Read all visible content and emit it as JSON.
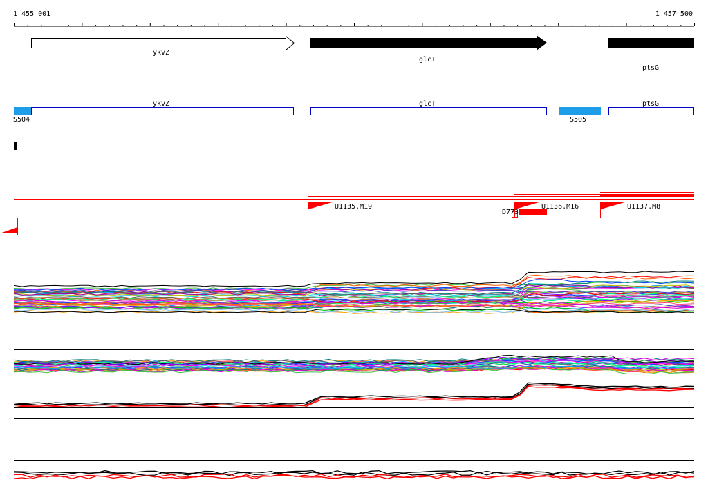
{
  "ruler": {
    "start_label": "1 455 001",
    "end_label": "1 457 500"
  },
  "genes": [
    {
      "name": "ykvZ",
      "strand": "+",
      "style": "open"
    },
    {
      "name": "glcT",
      "strand": "+",
      "style": "filled"
    },
    {
      "name": "ptsG",
      "strand": "+",
      "style": "filled"
    }
  ],
  "segments": [
    {
      "label": "S504",
      "color": "#1e9ee8"
    },
    {
      "name": "ykvZ"
    },
    {
      "name": "glcT"
    },
    {
      "label": "S505",
      "color": "#1e9ee8"
    },
    {
      "name": "ptsG"
    }
  ],
  "upstream_features": [
    {
      "label": "U1135.M19"
    },
    {
      "label": "U1136.M16"
    },
    {
      "label": "U1137.M8"
    }
  ],
  "downstream_feature": {
    "label": "D773"
  },
  "colors": {
    "segment_outline": "#0000cc",
    "segment_fill": "#1e9ee8",
    "feature": "#ff0000",
    "track_line": "#000000"
  }
}
